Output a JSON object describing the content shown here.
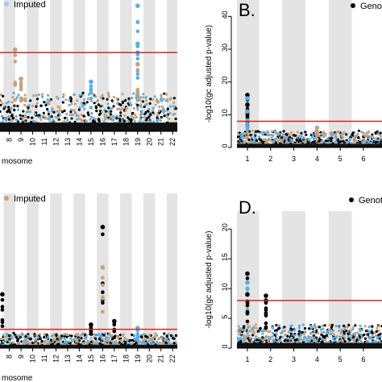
{
  "chart_data": [
    {
      "id": "A",
      "type": "scatter",
      "panel_label": "",
      "legend": [
        {
          "label": "Imputed",
          "color": "#a6cbec"
        }
      ],
      "legend_placement": "top-left",
      "xlabel": "mosome",
      "ylabel": "",
      "x_ticks": [
        "8",
        "9",
        "10",
        "11",
        "12",
        "13",
        "14",
        "15",
        "16",
        "17",
        "18",
        "19",
        "20",
        "21",
        "22"
      ],
      "chromosome_range": [
        7.2,
        22.4
      ],
      "ylim": [
        0,
        45
      ],
      "threshold": 27,
      "threshold_color": "#d62728",
      "stripes": "alternating gray background per chromosome",
      "point_colors": {
        "genotyped": "#000000",
        "imputed_a": "#5aaee6",
        "imputed_b": "#c9a07a"
      },
      "peaks": [
        {
          "chrom": "8.5",
          "value": 28,
          "color": "#c9a07a"
        },
        {
          "chrom": "19",
          "value": 43,
          "color": "#5aaee6"
        },
        {
          "chrom": "19",
          "value": 30,
          "color": "#5aaee6"
        },
        {
          "chrom": "19",
          "value": 27,
          "color": "#5aaee6"
        },
        {
          "chrom": "19",
          "value": 23,
          "color": "#c9a07a"
        },
        {
          "chrom": "9",
          "value": 18,
          "color": "#c9a07a"
        },
        {
          "chrom": "15",
          "value": 17,
          "color": "#5aaee6"
        }
      ]
    },
    {
      "id": "B",
      "type": "scatter",
      "panel_label": "B.",
      "legend": [
        {
          "label": "Geno",
          "color": "#000000"
        }
      ],
      "legend_placement": "top-right",
      "xlabel": "",
      "ylabel": "-log10(gc adjusted p-value)",
      "x_ticks": [
        "1",
        "2",
        "3",
        "4",
        "5",
        "6"
      ],
      "y_ticks": [
        "0",
        "10",
        "20",
        "30",
        "40"
      ],
      "chromosome_range": [
        0.55,
        6.8
      ],
      "ylim": [
        0,
        45
      ],
      "threshold": 8,
      "threshold_color": "#d62728",
      "stripes": "alternating gray background per chromosome",
      "point_colors": {
        "genotyped": "#000000",
        "imputed_a": "#5aaee6",
        "imputed_b": "#c9a07a"
      },
      "peaks": [
        {
          "chrom": "1",
          "value": 16,
          "color": "#000000"
        },
        {
          "chrom": "1",
          "value": 15,
          "color": "#5aaee6"
        },
        {
          "chrom": "1",
          "value": 13,
          "color": "#000000"
        },
        {
          "chrom": "1",
          "value": 11,
          "color": "#5aaee6"
        },
        {
          "chrom": "4",
          "value": 6,
          "color": "#c9a07a"
        }
      ]
    },
    {
      "id": "C",
      "type": "scatter",
      "panel_label": "",
      "legend": [
        {
          "label": "Imputed",
          "color": "#c9a07a"
        }
      ],
      "legend_placement": "top-left",
      "xlabel": "mosome",
      "ylabel": "",
      "x_ticks": [
        "8",
        "9",
        "10",
        "11",
        "12",
        "13",
        "14",
        "15",
        "16",
        "17",
        "18",
        "19",
        "20",
        "21",
        "22"
      ],
      "chromosome_range": [
        7.2,
        22.4
      ],
      "ylim": [
        0,
        23
      ],
      "threshold": 2.8,
      "threshold_color": "#d62728",
      "stripes": "alternating gray background per chromosome",
      "point_colors": {
        "genotyped": "#000000",
        "imputed_a": "#5aaee6",
        "imputed_b": "#c9a07a"
      },
      "peaks": [
        {
          "chrom": "7.4",
          "value": 8,
          "color": "#000000"
        },
        {
          "chrom": "16",
          "value": 18,
          "color": "#000000"
        },
        {
          "chrom": "16",
          "value": 12,
          "color": "#c9a07a"
        },
        {
          "chrom": "15",
          "value": 3.5,
          "color": "#000000"
        },
        {
          "chrom": "17",
          "value": 4,
          "color": "#000000"
        },
        {
          "chrom": "19",
          "value": 3,
          "color": "#5aaee6"
        }
      ]
    },
    {
      "id": "D",
      "type": "scatter",
      "panel_label": "D.",
      "legend": [
        {
          "label": "Genot",
          "color": "#000000"
        }
      ],
      "legend_placement": "top-right",
      "xlabel": "",
      "ylabel": "-log10(gc adjusted p-value)",
      "x_ticks": [
        "1",
        "2",
        "3",
        "4",
        "5",
        "6"
      ],
      "y_ticks": [
        "0",
        "5",
        "10",
        "15",
        "20"
      ],
      "chromosome_range": [
        0.55,
        6.8
      ],
      "ylim": [
        0,
        23
      ],
      "threshold": 8,
      "threshold_color": "#d62728",
      "stripes": "alternating gray background per chromosome",
      "point_colors": {
        "genotyped": "#000000",
        "imputed_a": "#5aaee6",
        "imputed_b": "#c9a07a"
      },
      "peaks": [
        {
          "chrom": "1",
          "value": 12.5,
          "color": "#000000"
        },
        {
          "chrom": "1",
          "value": 11,
          "color": "#5aaee6"
        },
        {
          "chrom": "1",
          "value": 9,
          "color": "#000000"
        },
        {
          "chrom": "1.8",
          "value": 8.8,
          "color": "#000000"
        },
        {
          "chrom": "1.8",
          "value": 8,
          "color": "#000000"
        }
      ]
    }
  ]
}
